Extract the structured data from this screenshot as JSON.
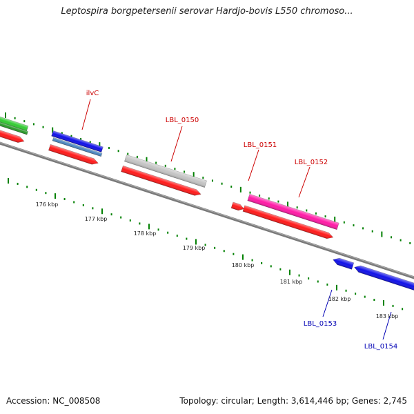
{
  "title": "Leptospira borgpetersenii serovar Hardjo-bovis L550 chromoso...",
  "footer": {
    "accession": "Accession: NC_008508",
    "topology": "Topology: circular; Length: 3,614,446 bp; Genes: 2,745"
  },
  "colors": {
    "forward_gene": "#ff1a1a",
    "rev_gene_blue": "#1010e8",
    "gray_gene": "#c4c4c4",
    "pink_gene": "#ff1aa6",
    "green_gene": "#33cc33",
    "steel_gene": "#4a86c0",
    "backbone": "#7a7a7a",
    "tick": "#008000",
    "label_forward": "#cc0000",
    "label_reverse": "#0000b4"
  },
  "genes": [
    {
      "name": "ilvC",
      "strand": "forward"
    },
    {
      "name": "LBL_0150",
      "strand": "forward"
    },
    {
      "name": "LBL_0151",
      "strand": "forward"
    },
    {
      "name": "LBL_0152",
      "strand": "forward"
    },
    {
      "name": "LBL_0153",
      "strand": "reverse"
    },
    {
      "name": "LBL_0154",
      "strand": "reverse"
    }
  ],
  "kbp_labels": [
    "176 kbp",
    "177 kbp",
    "178 kbp",
    "179 kbp",
    "180 kbp",
    "181 kbp",
    "182 kbp",
    "183 kbp"
  ]
}
